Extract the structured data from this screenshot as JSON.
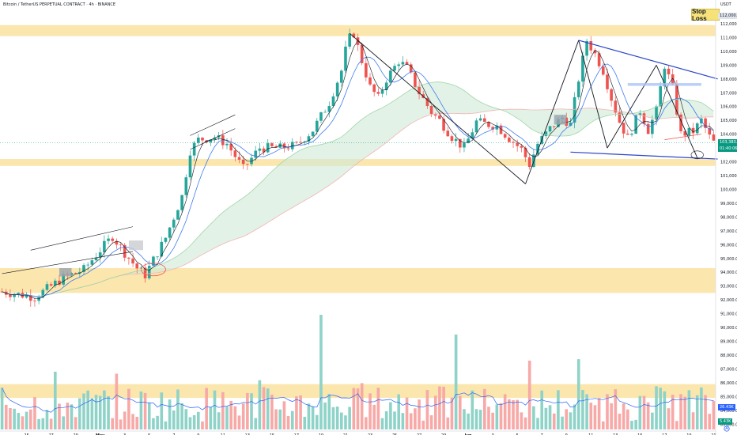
{
  "header": {
    "symbol_line": "Bitcoin / TetherUS PERPETUAL CONTRACT · 4h · BINANCE",
    "currency": "USDT"
  },
  "annotation": {
    "stop_loss": "Stop Loss"
  },
  "price_tags": {
    "top": "112,000.0",
    "last_price": "103,383.9",
    "countdown": "01:40:06",
    "vol_a": "26.43K",
    "vol_b": "5.43K"
  },
  "colors": {
    "up": "#26a69a",
    "down": "#ef5350",
    "zone": "#fbe3a5",
    "pattern": "#2a47c8",
    "trend": "#131722"
  },
  "chart_data": {
    "type": "candlestick",
    "x_ticks": [
      "25",
      "27",
      "29",
      "May",
      "3",
      "5",
      "7",
      "9",
      "11",
      "13",
      "15",
      "17",
      "19",
      "21",
      "23",
      "25",
      "27",
      "29",
      "Jun",
      "3",
      "5",
      "7",
      "9",
      "11",
      "13",
      "15",
      "17",
      "19",
      "21"
    ],
    "y_ticks": [
      "112,000.0",
      "111,000.0",
      "110,000.0",
      "109,000.0",
      "108,000.0",
      "107,000.0",
      "106,000.0",
      "105,000.0",
      "104,000.0",
      "103,000.0",
      "102,000.0",
      "101,000.0",
      "100,000.0",
      "99,000.0",
      "98,000.0",
      "97,000.0",
      "96,000.0",
      "95,000.0",
      "94,000.0",
      "93,000.0",
      "92,000.0",
      "91,000.0",
      "90,000.0",
      "89,000.0",
      "88,000.0",
      "87,000.0",
      "86,000.0",
      "85,000.0",
      "84,000.0",
      "83,000.0"
    ],
    "ylim": [
      82500,
      112800
    ],
    "price_path": [
      [
        0,
        92600
      ],
      [
        8,
        92200
      ],
      [
        15,
        93600
      ],
      [
        20,
        94200
      ],
      [
        24,
        95600
      ],
      [
        27,
        96600
      ],
      [
        30,
        95400
      ],
      [
        33,
        94300
      ],
      [
        35,
        93800
      ],
      [
        37,
        94900
      ],
      [
        40,
        96500
      ],
      [
        44,
        99500
      ],
      [
        46,
        102800
      ],
      [
        48,
        103600
      ],
      [
        52,
        103800
      ],
      [
        55,
        103300
      ],
      [
        59,
        101500
      ],
      [
        63,
        103000
      ],
      [
        68,
        103000
      ],
      [
        72,
        103200
      ],
      [
        76,
        104300
      ],
      [
        80,
        106300
      ],
      [
        83,
        108600
      ],
      [
        84.5,
        110800
      ],
      [
        86,
        111300
      ],
      [
        88,
        109300
      ],
      [
        90,
        107400
      ],
      [
        92,
        106600
      ],
      [
        94,
        108000
      ],
      [
        97,
        109300
      ],
      [
        99,
        108800
      ],
      [
        102,
        107000
      ],
      [
        105,
        105600
      ],
      [
        107,
        105000
      ],
      [
        110,
        103800
      ],
      [
        113,
        103000
      ],
      [
        116,
        104900
      ],
      [
        119,
        104700
      ],
      [
        121,
        104600
      ],
      [
        124,
        103700
      ],
      [
        127,
        102900
      ],
      [
        129,
        101800
      ],
      [
        131,
        103300
      ],
      [
        134,
        104400
      ],
      [
        137,
        105200
      ],
      [
        139,
        104700
      ],
      [
        141,
        108000
      ],
      [
        143,
        110800
      ],
      [
        145,
        109800
      ],
      [
        147,
        108600
      ],
      [
        149,
        106600
      ],
      [
        151,
        104900
      ],
      [
        153,
        103700
      ],
      [
        156,
        105700
      ],
      [
        158,
        104300
      ],
      [
        160,
        105700
      ],
      [
        162,
        109000
      ],
      [
        164,
        107300
      ],
      [
        166,
        104000
      ],
      [
        169,
        104200
      ],
      [
        171,
        105000
      ],
      [
        173,
        103800
      ],
      [
        174,
        103400
      ]
    ],
    "candle_count": 175,
    "supply_demand_zones": [
      [
        111100,
        111900
      ],
      [
        101700,
        102200
      ],
      [
        92500,
        94300
      ],
      [
        84900,
        85900
      ]
    ],
    "volume_max_k": 60
  }
}
